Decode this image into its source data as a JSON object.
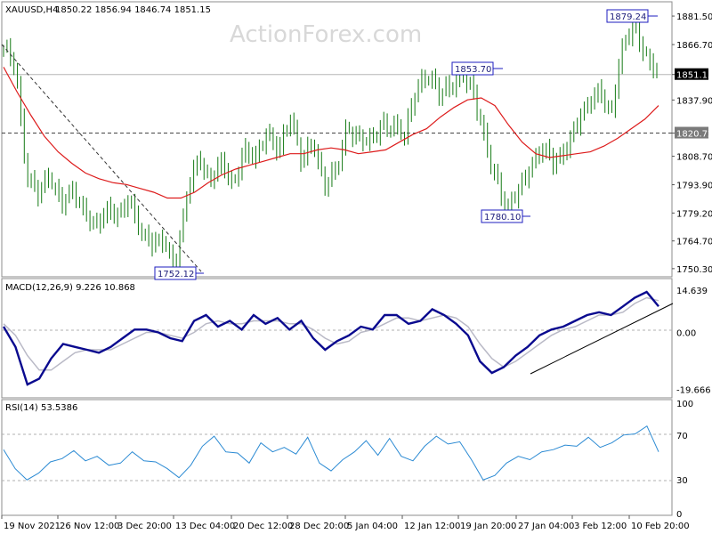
{
  "watermark": "ActionForex.com",
  "chart_data": [
    {
      "type": "ohlc",
      "title": "XAUUSD,H4",
      "ohlc_header": "1850.22 1856.94 1846.74 1851.15",
      "ylim": [
        1747,
        1888
      ],
      "y_ticks": [
        "1881.50",
        "1866.70",
        "1851.15",
        "1837.90",
        "1820.72",
        "1808.70",
        "1793.90",
        "1779.20",
        "1764.70",
        "1750.30"
      ],
      "x_ticks": [
        "19 Nov 2021",
        "26 Nov 12:00",
        "3 Dec 20:00",
        "13 Dec 04:00",
        "20 Dec 12:00",
        "28 Dec 20:00",
        "5 Jan 04:00",
        "12 Jan 12:00",
        "19 Jan 20:00",
        "27 Jan 04:00",
        "3 Feb 12:00",
        "10 Feb 20:00"
      ],
      "current_price": "1851.15",
      "support_level": "1820.72",
      "annotations": [
        "1879.24",
        "1853.70",
        "1780.10",
        "1752.12"
      ],
      "price_path": [
        1865,
        1855,
        1800,
        1790,
        1797,
        1785,
        1792,
        1778,
        1773,
        1782,
        1776,
        1787,
        1770,
        1762,
        1765,
        1752,
        1788,
        1808,
        1797,
        1805,
        1792,
        1814,
        1807,
        1820,
        1813,
        1829,
        1805,
        1818,
        1793,
        1800,
        1825,
        1818,
        1815,
        1826,
        1825,
        1818,
        1845,
        1852,
        1840,
        1845,
        1853,
        1840,
        1817,
        1797,
        1780,
        1792,
        1805,
        1812,
        1805,
        1813,
        1825,
        1835,
        1845,
        1829,
        1865,
        1879,
        1860,
        1851
      ],
      "series": [
        {
          "name": "",
          "color": "#dd1b1b",
          "values": [
            1855,
            1842,
            1830,
            1819,
            1811,
            1805,
            1800,
            1797,
            1795,
            1794,
            1792,
            1790,
            1787,
            1787,
            1790,
            1795,
            1799,
            1802,
            1804,
            1806,
            1808,
            1810,
            1810,
            1812,
            1813,
            1812,
            1810,
            1811,
            1812,
            1816,
            1820,
            1823,
            1829,
            1834,
            1838,
            1839,
            1835,
            1825,
            1816,
            1810,
            1808,
            1809,
            1810,
            1811,
            1814,
            1818,
            1823,
            1828,
            1835
          ]
        }
      ],
      "trendline": "dashed"
    },
    {
      "type": "line",
      "title": "MACD(12,26,9) 9.226 10.868",
      "ylim": [
        -22,
        18
      ],
      "y_ticks": [
        "14.639",
        "0.00",
        "-19.666"
      ],
      "series": [
        {
          "name": "",
          "color": "#0a0a8f",
          "values": [
            2,
            -5,
            -18,
            -16,
            -9,
            -4,
            -5,
            -6,
            -7,
            -5,
            -2,
            1,
            1,
            0,
            -2,
            -3,
            4,
            6,
            2,
            4,
            1,
            6,
            3,
            5,
            1,
            4,
            -2,
            -6,
            -3,
            -1,
            2,
            1,
            6,
            6,
            3,
            4,
            8,
            6,
            3,
            -1,
            -10,
            -14,
            -12,
            -8,
            -5,
            -1,
            1,
            2,
            4,
            6,
            7,
            6,
            9,
            12,
            14,
            9
          ]
        },
        {
          "name": "",
          "color": "#b9b9c6",
          "values": [
            3,
            -1,
            -8,
            -13,
            -13,
            -10,
            -7,
            -6,
            -6,
            -6,
            -4,
            -2,
            0,
            0,
            -1,
            -2,
            0,
            3,
            4,
            3,
            3,
            4,
            4,
            4,
            3,
            3,
            1,
            -2,
            -4,
            -3,
            0,
            1,
            3,
            5,
            5,
            4,
            5,
            6,
            5,
            2,
            -4,
            -9,
            -12,
            -10,
            -7,
            -4,
            -1,
            1,
            2,
            4,
            6,
            6,
            7,
            10,
            12,
            11
          ]
        }
      ]
    },
    {
      "type": "line",
      "title": "RSI(14) 53.5386",
      "ylim": [
        0,
        100
      ],
      "y_ticks": [
        "100",
        "70",
        "30",
        "0"
      ],
      "series": [
        {
          "name": "",
          "color": "#2b8ad3",
          "values": [
            57,
            40,
            30,
            36,
            46,
            49,
            56,
            47,
            51,
            43,
            45,
            55,
            47,
            46,
            40,
            32,
            43,
            60,
            69,
            55,
            54,
            45,
            63,
            55,
            59,
            53,
            68,
            45,
            38,
            48,
            55,
            65,
            52,
            67,
            51,
            47,
            60,
            69,
            62,
            64,
            48,
            30,
            34,
            45,
            51,
            48,
            55,
            57,
            61,
            60,
            68,
            59,
            63,
            70,
            71,
            78,
            55
          ]
        }
      ]
    }
  ]
}
